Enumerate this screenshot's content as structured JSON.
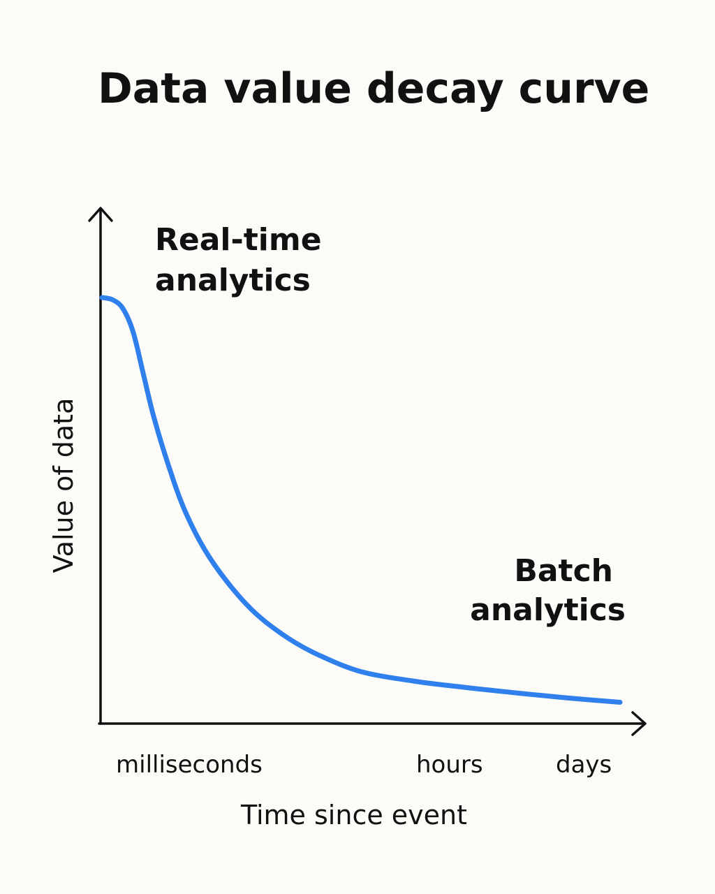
{
  "chart_data": {
    "type": "line",
    "title": "Data value decay curve",
    "xlabel": "Time since event",
    "ylabel": "Value of data",
    "x_tick_labels": [
      "milliseconds",
      "hours",
      "days"
    ],
    "annotations": [
      {
        "line1": "Real-time",
        "line2": "analytics",
        "position": "top-left"
      },
      {
        "line1": "Batch",
        "line2": "analytics",
        "position": "bottom-right"
      }
    ],
    "series": [
      {
        "color": "#2f80ed",
        "x": [
          0,
          0.02,
          0.04,
          0.06,
          0.08,
          0.1,
          0.13,
          0.16,
          0.2,
          0.25,
          0.3,
          0.36,
          0.42,
          0.5,
          0.6,
          0.7,
          0.8,
          0.9,
          1.0
        ],
        "y": [
          1.0,
          0.995,
          0.975,
          0.92,
          0.82,
          0.72,
          0.6,
          0.5,
          0.405,
          0.32,
          0.255,
          0.2,
          0.16,
          0.122,
          0.1,
          0.085,
          0.072,
          0.06,
          0.05
        ]
      }
    ],
    "xlim": [
      0,
      1
    ],
    "ylim": [
      0,
      1
    ],
    "grid": false,
    "legend": false,
    "axis_arrows": true
  }
}
